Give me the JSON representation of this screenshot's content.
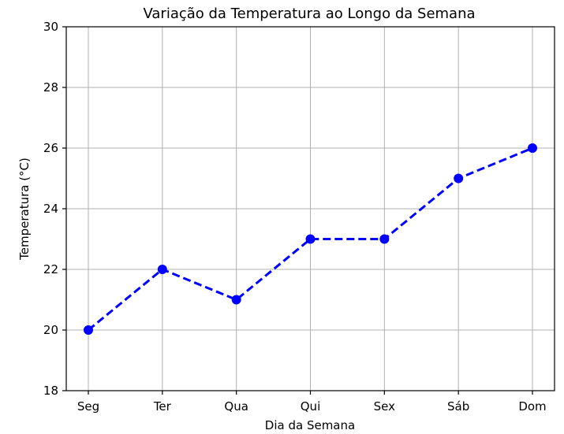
{
  "chart_data": {
    "type": "line",
    "title": "Variação da Temperatura ao Longo da Semana",
    "xlabel": "Dia da Semana",
    "ylabel": "Temperatura (°C)",
    "categories": [
      "Seg",
      "Ter",
      "Qua",
      "Qui",
      "Sex",
      "Sáb",
      "Dom"
    ],
    "series": [
      {
        "values": [
          20,
          22,
          21,
          23,
          23,
          25,
          26
        ],
        "color": "#0000ff",
        "line_style": "dashed",
        "marker": "circle"
      }
    ],
    "ylim": [
      18,
      30
    ],
    "yticks": [
      18,
      20,
      22,
      24,
      26,
      28,
      30
    ],
    "grid": true
  }
}
